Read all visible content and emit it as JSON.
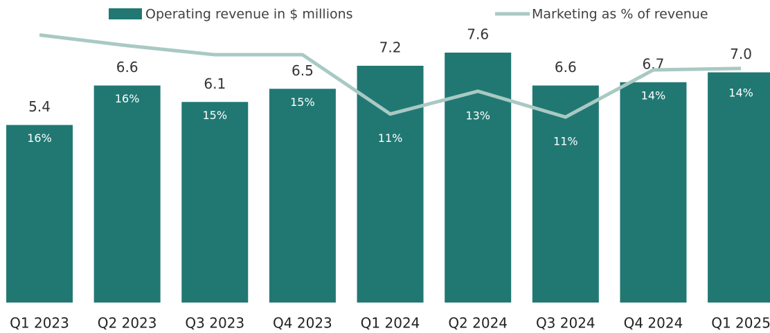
{
  "chart_data": {
    "type": "bar-line",
    "categories": [
      "Q1 2023",
      "Q2 2023",
      "Q3 2023",
      "Q4 2023",
      "Q1 2024",
      "Q2 2024",
      "Q3 2024",
      "Q4 2024",
      "Q1 2025"
    ],
    "series": [
      {
        "name": "Operating revenue in $ millions",
        "type": "bar",
        "color": "#217873",
        "values": [
          5.4,
          6.6,
          6.1,
          6.5,
          7.2,
          7.6,
          6.6,
          6.7,
          7.0
        ],
        "value_labels": [
          "5.4",
          "6.6",
          "6.1",
          "6.5",
          "7.2",
          "7.6",
          "6.6",
          "6.7",
          "7.0"
        ]
      },
      {
        "name": "Marketing as % of revenue",
        "type": "line",
        "axis": "y2",
        "color": "#a9c9c3",
        "values": [
          16.3,
          15.6,
          15.0,
          15.0,
          11.1,
          12.6,
          10.9,
          14.0,
          14.1
        ],
        "value_labels": [
          "16%",
          "16%",
          "15%",
          "15%",
          "11%",
          "13%",
          "11%",
          "14%",
          "14%"
        ]
      }
    ],
    "ylim": [
      0,
      9.2
    ],
    "y2lim": [
      -1.3,
      18.6
    ],
    "legend": "top"
  }
}
